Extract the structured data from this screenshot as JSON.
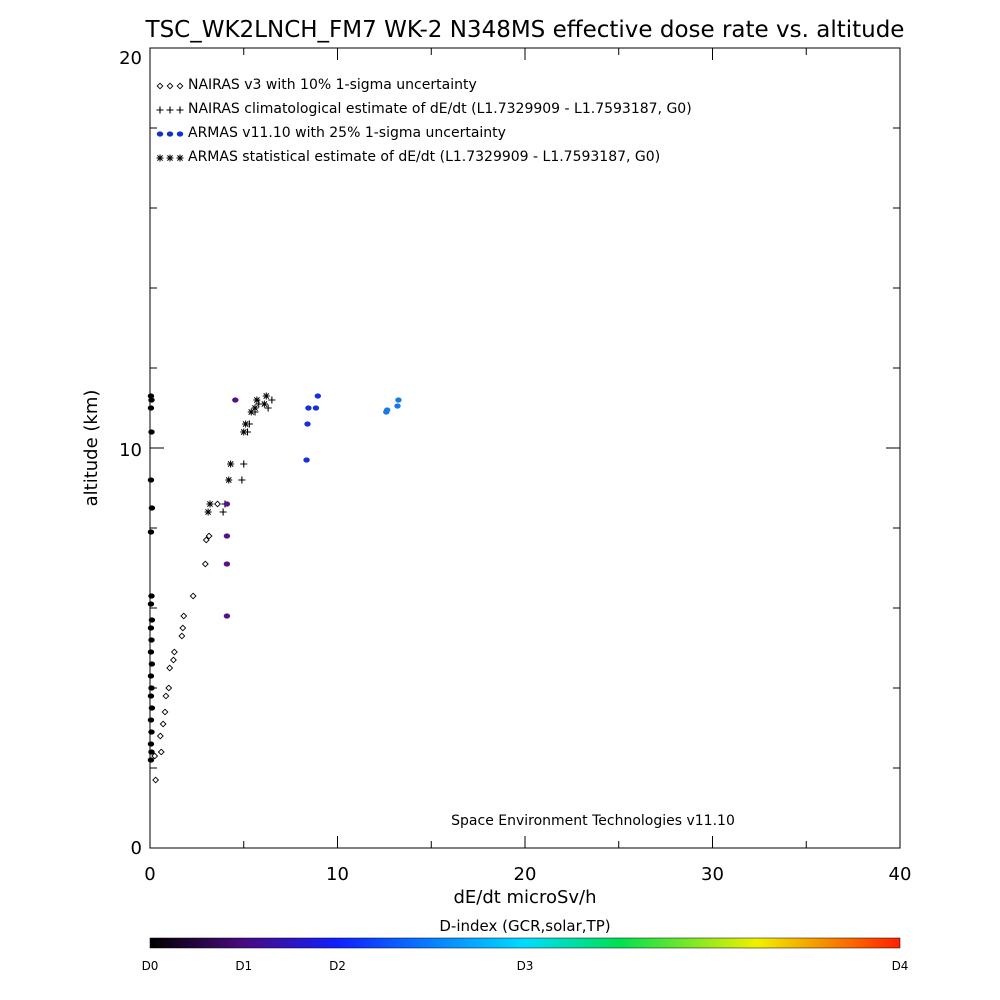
{
  "chart_data": {
    "type": "scatter",
    "title": "TSC_WK2LNCH_FM7 WK-2 N348MS effective dose rate vs. altitude",
    "xlabel": "dE/dt microSv/h",
    "ylabel": "altitude (km)",
    "xlim": [
      0,
      40
    ],
    "ylim": [
      0,
      20
    ],
    "x_ticks": [
      "0",
      "10",
      "20",
      "30",
      "40"
    ],
    "y_ticks": [
      "0",
      "10",
      "20"
    ],
    "x_minor_step": 5,
    "y_minor_step": 2,
    "legend_position": "top-left",
    "legend": [
      {
        "marker": "diamond",
        "color": "#000000",
        "label": "NAIRAS v3 with 10% 1-sigma uncertainty"
      },
      {
        "marker": "plus",
        "color": "#000000",
        "label": "NAIRAS climatological estimate of dE/dt (L1.7329909 - L1.7593187, G0)"
      },
      {
        "marker": "dot",
        "color": "#1030d0",
        "label": "ARMAS v11.10 with 25% 1-sigma uncertainty"
      },
      {
        "marker": "asterisk",
        "color": "#000000",
        "label": "ARMAS statistical estimate of dE/dt (L1.7329909 - L1.7593187, G0)"
      }
    ],
    "annotation": "Space Environment Technologies v11.10",
    "series": [
      {
        "marker": "diamond",
        "color": "#000000",
        "x": [
          0.3,
          0.25,
          0.6,
          0.55,
          0.7,
          0.8,
          0.85,
          1.0,
          1.05,
          1.25,
          1.3,
          1.7,
          1.75,
          1.8,
          2.3,
          2.95,
          3.0,
          3.15,
          3.6
        ],
        "y": [
          1.7,
          2.3,
          2.4,
          2.8,
          3.1,
          3.4,
          3.8,
          4.0,
          4.5,
          4.7,
          4.9,
          5.3,
          5.5,
          5.8,
          6.3,
          7.1,
          7.7,
          7.8,
          8.6
        ]
      },
      {
        "marker": "plus",
        "color": "#000000",
        "x": [
          3.9,
          4.0,
          4.9,
          5.0,
          5.2,
          5.3,
          5.6,
          5.8,
          6.3,
          6.5
        ],
        "y": [
          8.4,
          8.6,
          9.2,
          9.6,
          10.4,
          10.6,
          10.9,
          11.1,
          11.0,
          11.2
        ]
      },
      {
        "marker": "asterisk",
        "color": "#000000",
        "x": [
          3.1,
          3.2,
          4.2,
          4.3,
          5.0,
          5.1,
          5.4,
          5.6,
          5.7,
          6.1,
          6.2
        ],
        "y": [
          8.4,
          8.6,
          9.2,
          9.6,
          10.4,
          10.6,
          10.9,
          11.0,
          11.2,
          11.1,
          11.3
        ]
      },
      {
        "marker": "dot",
        "color": "#000000",
        "x": [
          0.05,
          0.08,
          0.05,
          0.08,
          0.05,
          0.1,
          0.05,
          0.08,
          0.05,
          0.1,
          0.05,
          0.08,
          0.05,
          0.1,
          0.05,
          0.08,
          0.05,
          0.1,
          0.05,
          0.08,
          0.05,
          0.08,
          0.05
        ],
        "y": [
          2.2,
          2.4,
          2.6,
          2.9,
          3.2,
          3.5,
          3.8,
          4.0,
          4.3,
          4.6,
          4.9,
          5.2,
          5.5,
          5.7,
          6.1,
          6.3,
          7.9,
          8.5,
          9.2,
          10.4,
          11.0,
          11.2,
          11.3
        ]
      },
      {
        "marker": "dot",
        "color": "#5a1080",
        "x": [
          4.1,
          4.1,
          4.1,
          4.1,
          4.55
        ],
        "y": [
          5.8,
          7.1,
          7.8,
          8.6,
          11.2
        ]
      },
      {
        "marker": "dot",
        "color": "#1830d8",
        "x": [
          8.35,
          8.4,
          8.45,
          8.85,
          8.95
        ],
        "y": [
          9.7,
          10.6,
          11.0,
          11.0,
          11.3
        ]
      },
      {
        "marker": "dot",
        "color": "#1a7ae0",
        "x": [
          12.6,
          12.65,
          13.2,
          13.25
        ],
        "y": [
          10.9,
          10.95,
          11.05,
          11.2
        ]
      }
    ],
    "colorbar": {
      "title": "D-index (GCR,solar,TP)",
      "ticks": [
        {
          "label": "D0",
          "value": 0
        },
        {
          "label": "D1",
          "value": 1
        },
        {
          "label": "D2",
          "value": 2
        },
        {
          "label": "D3",
          "value": 4
        },
        {
          "label": "D4",
          "value": 8
        }
      ],
      "range": [
        0,
        8
      ],
      "colors": [
        "#000000",
        "#6a0aa0",
        "#1030ff",
        "#00c8ff",
        "#00e060",
        "#f0f000",
        "#ff2000"
      ]
    }
  }
}
